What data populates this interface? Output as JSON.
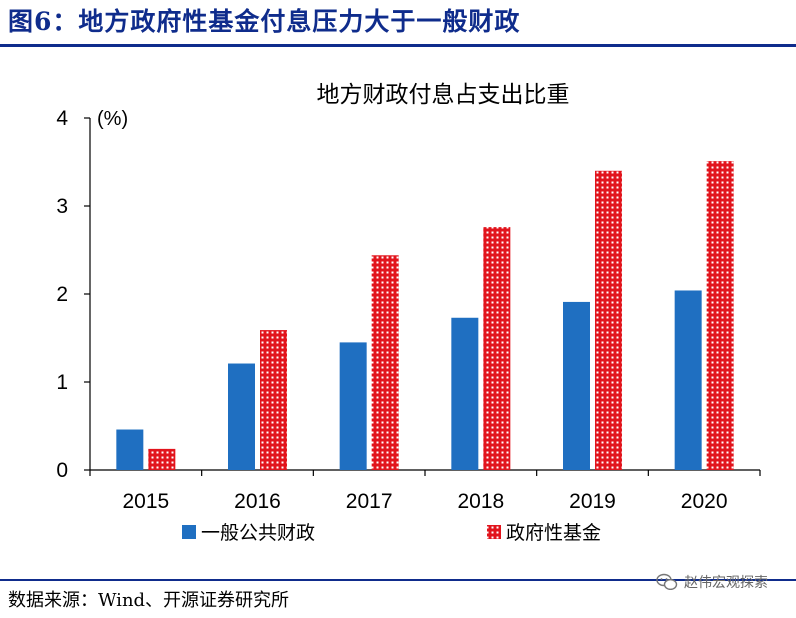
{
  "figure": {
    "title": "图6：地方政府性基金付息压力大于一般财政",
    "source": "数据来源：Wind、开源证券研究所",
    "watermark": "赵伟宏观探索"
  },
  "colors": {
    "accent": "#0f2c8c",
    "series_blue": "#1f6fc1",
    "series_red": "#e2141c"
  },
  "chart_data": {
    "type": "bar",
    "title": "地方财政付息占支出比重",
    "ylabel": "(%)",
    "xlabel": "",
    "categories": [
      "2015",
      "2016",
      "2017",
      "2018",
      "2019",
      "2020"
    ],
    "series": [
      {
        "name": "一般公共财政",
        "values": [
          0.46,
          1.21,
          1.45,
          1.73,
          1.91,
          2.04
        ],
        "color": "#1f6fc1",
        "pattern": "solid"
      },
      {
        "name": "政府性基金",
        "values": [
          0.24,
          1.59,
          2.44,
          2.76,
          3.4,
          3.51
        ],
        "color": "#e2141c",
        "pattern": "dotted"
      }
    ],
    "ylim": [
      0,
      4
    ],
    "yticks": [
      0,
      1,
      2,
      3,
      4
    ],
    "grid": false,
    "legend": "bottom"
  }
}
